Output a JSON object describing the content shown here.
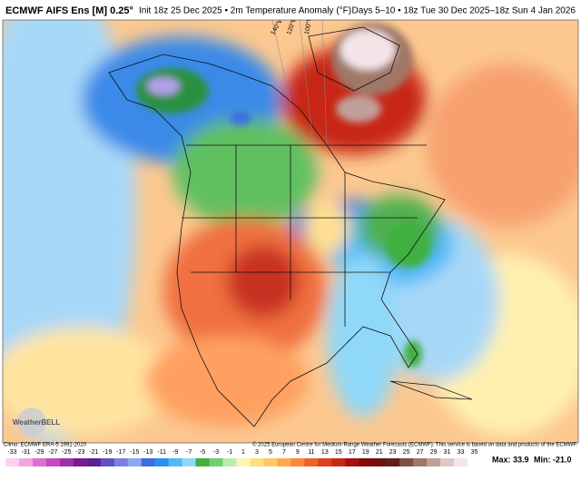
{
  "header": {
    "title": "ECMWF AIFS Ens [M] 0.25°",
    "init": "Init 18z 25 Dec 2025 • 2m Temperature Anomaly (°F)",
    "valid": "Days 5–10 • 18z Tue 30 Dec 2025–18z Sun 4 Jan 2026"
  },
  "map": {
    "longitude_labels": [
      "140°W",
      "120°W",
      "100°W"
    ],
    "logo": "WeatherBELL"
  },
  "footer": {
    "climo": "Climo: ECMWF ERA-5 1991-2020",
    "copyright": "© 2025 European Centre for Medium-Range Weather Forecasts (ECMWF). This service is based on data and products of the ECMWF.",
    "max": "Max: 33.9",
    "min": "Min: -21.0"
  },
  "colorbar": {
    "ticks": [
      -33,
      -31,
      -29,
      -27,
      -25,
      -23,
      -21,
      -19,
      -17,
      -15,
      -13,
      -11,
      -9,
      -7,
      -5,
      -3,
      -1,
      1,
      3,
      5,
      7,
      9,
      11,
      13,
      15,
      17,
      19,
      21,
      23,
      25,
      27,
      29,
      31,
      33,
      35
    ],
    "colors": [
      "#fbd0f0",
      "#f3a4e3",
      "#e070d0",
      "#c848c0",
      "#a030a8",
      "#7a1a90",
      "#5a2090",
      "#6050c0",
      "#7a80e0",
      "#8ca8f0",
      "#3a6ee0",
      "#2a90f0",
      "#50b8f8",
      "#90d8f8",
      "#40b040",
      "#70d070",
      "#b8ecb0",
      "#fff4b0",
      "#ffe080",
      "#ffc860",
      "#ffa848",
      "#ff8838",
      "#f06028",
      "#e04020",
      "#c82818",
      "#a81010",
      "#880808",
      "#701010",
      "#602018",
      "#805040",
      "#a07868",
      "#c0a098",
      "#e0c8c8",
      "#f4e4e8",
      "#ffffff"
    ]
  }
}
